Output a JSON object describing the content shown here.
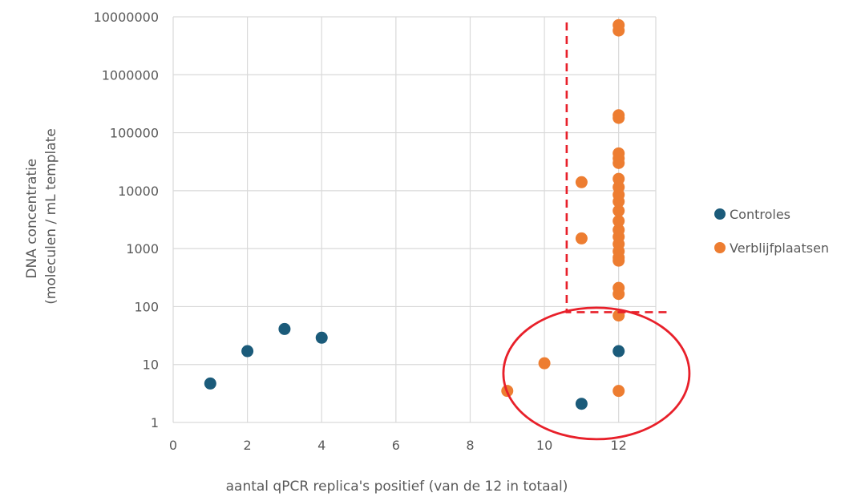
{
  "chart_data": {
    "type": "scatter",
    "title": "",
    "xlabel": "aantal qPCR replica's positief (van de 12 in totaal)",
    "ylabel_lines": [
      "DNA concentratie",
      "(moleculen / mL template"
    ],
    "xlim": [
      0,
      13
    ],
    "ylim": [
      1,
      10000000
    ],
    "yscale": "log",
    "grid": true,
    "legend_position": "right",
    "x_ticks": [
      "0",
      "2",
      "4",
      "6",
      "8",
      "10",
      "12"
    ],
    "y_ticks": [
      "1",
      "10",
      "100",
      "1000",
      "10000",
      "100000",
      "1000000",
      "10000000"
    ],
    "series": [
      {
        "name": "Controles",
        "color": "#1b5b7a",
        "points": [
          {
            "x": 1,
            "y": 4.7
          },
          {
            "x": 2,
            "y": 17
          },
          {
            "x": 3,
            "y": 41
          },
          {
            "x": 4,
            "y": 29
          },
          {
            "x": 11,
            "y": 2.1
          },
          {
            "x": 12,
            "y": 17
          }
        ]
      },
      {
        "name": "Verblijfplaatsen",
        "color": "#ed7d31",
        "points": [
          {
            "x": 9,
            "y": 3.5
          },
          {
            "x": 10,
            "y": 10.5
          },
          {
            "x": 11,
            "y": 1500
          },
          {
            "x": 11,
            "y": 14000
          },
          {
            "x": 12,
            "y": 3.5
          },
          {
            "x": 12,
            "y": 70
          },
          {
            "x": 12,
            "y": 165
          },
          {
            "x": 12,
            "y": 210
          },
          {
            "x": 12,
            "y": 620
          },
          {
            "x": 12,
            "y": 700
          },
          {
            "x": 12,
            "y": 900
          },
          {
            "x": 12,
            "y": 1200
          },
          {
            "x": 12,
            "y": 1600
          },
          {
            "x": 12,
            "y": 2100
          },
          {
            "x": 12,
            "y": 3000
          },
          {
            "x": 12,
            "y": 4500
          },
          {
            "x": 12,
            "y": 6500
          },
          {
            "x": 12,
            "y": 8500
          },
          {
            "x": 12,
            "y": 11500
          },
          {
            "x": 12,
            "y": 16000
          },
          {
            "x": 12,
            "y": 30000
          },
          {
            "x": 12,
            "y": 36000
          },
          {
            "x": 12,
            "y": 44000
          },
          {
            "x": 12,
            "y": 180000
          },
          {
            "x": 12,
            "y": 200000
          },
          {
            "x": 12,
            "y": 5800000
          },
          {
            "x": 12,
            "y": 7200000
          }
        ]
      }
    ],
    "annotations": [
      {
        "type": "dashed-threshold",
        "color": "#e8202a",
        "x": 10.6,
        "y_from": 80,
        "y_to": 8000000,
        "x_to": 13
      },
      {
        "type": "ellipse",
        "color": "#e8202a",
        "center": {
          "x": 11.4,
          "y": 7
        },
        "note": "highlighted low-concentration points"
      }
    ]
  }
}
